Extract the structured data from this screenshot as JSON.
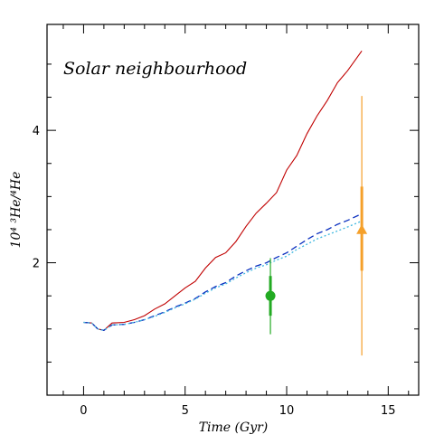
{
  "chart_data": {
    "type": "line",
    "xlabel": "Time (Gyr)",
    "ylabel": "10⁴ ³He/⁴He",
    "annotation": "Solar neighbourhood",
    "xlim": [
      -1.8,
      16.5
    ],
    "ylim": [
      0.0,
      5.6
    ],
    "x_major_ticks": [
      0,
      5,
      10,
      15
    ],
    "x_minor_ticks": [
      -1,
      1,
      2,
      3,
      4,
      6,
      7,
      8,
      9,
      11,
      12,
      13,
      14,
      16
    ],
    "y_major_ticks": [
      2,
      4
    ],
    "y_minor_ticks": [
      0.5,
      1,
      1.5,
      2.5,
      3,
      3.5,
      4.5,
      5
    ],
    "x_tick_labels": [
      "0",
      "5",
      "10",
      "15"
    ],
    "y_tick_labels": [
      "2",
      "4"
    ],
    "series": [
      {
        "color": "#c00000",
        "style": "solid",
        "x": [
          0.0,
          0.4,
          0.7,
          1.0,
          1.4,
          2.0,
          2.5,
          3.0,
          3.5,
          4.0,
          4.5,
          5.0,
          5.5,
          6.0,
          6.5,
          7.0,
          7.5,
          8.0,
          8.5,
          9.0,
          9.5,
          10.0,
          10.5,
          11.0,
          11.5,
          12.0,
          12.5,
          13.0,
          13.7
        ],
        "y": [
          1.1,
          1.09,
          1.0,
          0.98,
          1.09,
          1.1,
          1.14,
          1.2,
          1.3,
          1.38,
          1.5,
          1.62,
          1.72,
          1.92,
          2.08,
          2.15,
          2.32,
          2.55,
          2.75,
          2.9,
          3.06,
          3.4,
          3.62,
          3.95,
          4.22,
          4.45,
          4.72,
          4.9,
          5.2
        ]
      },
      {
        "color": "#0a2fbf",
        "style": "dashed",
        "x": [
          0.0,
          0.4,
          0.7,
          1.0,
          1.4,
          2.0,
          2.5,
          3.0,
          3.5,
          4.0,
          4.5,
          5.0,
          5.5,
          6.0,
          6.5,
          7.0,
          7.5,
          8.0,
          8.5,
          9.0,
          9.5,
          10.0,
          10.5,
          11.0,
          11.5,
          12.0,
          12.5,
          13.0,
          13.7
        ],
        "y": [
          1.1,
          1.09,
          1.0,
          0.98,
          1.06,
          1.07,
          1.1,
          1.14,
          1.2,
          1.26,
          1.33,
          1.39,
          1.46,
          1.56,
          1.64,
          1.7,
          1.8,
          1.88,
          1.95,
          2.0,
          2.08,
          2.15,
          2.25,
          2.35,
          2.44,
          2.5,
          2.58,
          2.64,
          2.74
        ]
      },
      {
        "color": "#3fb8e0",
        "style": "dotted",
        "x": [
          0.0,
          0.4,
          0.7,
          1.0,
          1.4,
          2.0,
          2.5,
          3.0,
          3.5,
          4.0,
          4.5,
          5.0,
          5.5,
          6.0,
          6.5,
          7.0,
          7.5,
          8.0,
          8.5,
          9.0,
          9.5,
          10.0,
          10.5,
          11.0,
          11.5,
          12.0,
          12.5,
          13.0,
          13.7
        ],
        "y": [
          1.1,
          1.09,
          1.0,
          0.98,
          1.06,
          1.07,
          1.1,
          1.14,
          1.19,
          1.25,
          1.32,
          1.38,
          1.45,
          1.54,
          1.62,
          1.68,
          1.77,
          1.85,
          1.92,
          1.97,
          2.04,
          2.1,
          2.2,
          2.28,
          2.36,
          2.42,
          2.48,
          2.54,
          2.63
        ]
      }
    ],
    "observations": [
      {
        "color": "#22aa22",
        "marker": "circle",
        "x": 9.2,
        "y": 1.5,
        "thick_err": [
          1.2,
          1.8
        ],
        "thin_err": [
          0.92,
          2.07
        ]
      },
      {
        "color": "#f5a02a",
        "marker": "triangle",
        "x": 13.7,
        "y": 2.5,
        "thick_err": [
          1.88,
          3.15
        ],
        "thin_err": [
          0.6,
          4.52
        ]
      }
    ]
  }
}
